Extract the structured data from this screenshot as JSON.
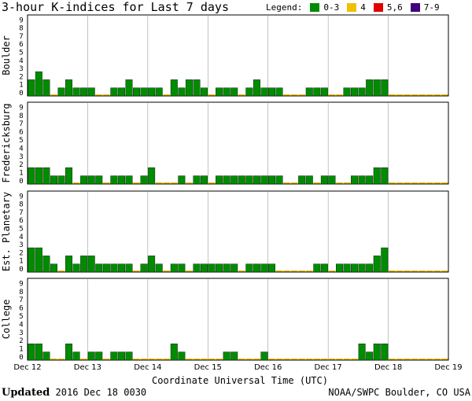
{
  "title": "3-hour K-indices for Last 7 days",
  "legend": {
    "label": "Legend:",
    "items": [
      {
        "label": "0-3",
        "color": "#008c00"
      },
      {
        "label": "4",
        "color": "#f0c000"
      },
      {
        "label": "5,6",
        "color": "#e00000"
      },
      {
        "label": "7-9",
        "color": "#400080"
      }
    ]
  },
  "footer": {
    "updated_label": "Updated",
    "updated_value": "2016 Dec 18 0030",
    "source": "NOAA/SWPC Boulder, CO USA"
  },
  "chart_data": [
    {
      "type": "bar",
      "title": "Boulder",
      "ylabel": "Boulder",
      "xlabel": "Coordinate Universal Time (UTC)",
      "ylim": [
        0,
        9
      ],
      "yticks": [
        "0",
        "1",
        "2",
        "3",
        "4",
        "5",
        "6",
        "7",
        "8",
        "9"
      ],
      "xticks": [
        "Dec 12",
        "Dec 13",
        "Dec 14",
        "Dec 15",
        "Dec 16",
        "Dec 17",
        "Dec 18",
        "Dec 19"
      ],
      "bar_interval_hours": 3,
      "values": [
        2,
        3,
        2,
        0,
        1,
        2,
        1,
        1,
        1,
        0,
        0,
        1,
        1,
        2,
        1,
        1,
        1,
        1,
        0,
        2,
        1,
        2,
        2,
        1,
        0,
        1,
        1,
        1,
        0,
        1,
        2,
        1,
        1,
        1,
        0,
        0,
        0,
        1,
        1,
        1,
        0,
        0,
        1,
        1,
        1,
        2,
        2,
        2
      ]
    },
    {
      "type": "bar",
      "title": "Fredericksburg",
      "ylabel": "Fredericksburg",
      "xlabel": "Coordinate Universal Time (UTC)",
      "ylim": [
        0,
        9
      ],
      "yticks": [
        "0",
        "1",
        "2",
        "3",
        "4",
        "5",
        "6",
        "7",
        "8",
        "9"
      ],
      "xticks": [
        "Dec 12",
        "Dec 13",
        "Dec 14",
        "Dec 15",
        "Dec 16",
        "Dec 17",
        "Dec 18",
        "Dec 19"
      ],
      "bar_interval_hours": 3,
      "values": [
        2,
        2,
        2,
        1,
        1,
        2,
        0,
        1,
        1,
        1,
        0,
        1,
        1,
        1,
        0,
        1,
        2,
        0,
        0,
        0,
        1,
        0,
        1,
        1,
        0,
        1,
        1,
        1,
        1,
        1,
        1,
        1,
        1,
        1,
        0,
        0,
        1,
        1,
        0,
        1,
        1,
        0,
        0,
        1,
        1,
        1,
        2,
        2
      ]
    },
    {
      "type": "bar",
      "title": "Est. Planetary",
      "ylabel": "Est. Planetary",
      "xlabel": "Coordinate Universal Time (UTC)",
      "ylim": [
        0,
        9
      ],
      "yticks": [
        "0",
        "1",
        "2",
        "3",
        "4",
        "5",
        "6",
        "7",
        "8",
        "9"
      ],
      "xticks": [
        "Dec 12",
        "Dec 13",
        "Dec 14",
        "Dec 15",
        "Dec 16",
        "Dec 17",
        "Dec 18",
        "Dec 19"
      ],
      "bar_interval_hours": 3,
      "values": [
        3,
        3,
        2,
        1,
        0,
        2,
        1,
        2,
        2,
        1,
        1,
        1,
        1,
        1,
        0,
        1,
        2,
        1,
        0,
        1,
        1,
        0,
        1,
        1,
        1,
        1,
        1,
        1,
        0,
        1,
        1,
        1,
        1,
        0,
        0,
        0,
        0,
        0,
        1,
        1,
        0,
        1,
        1,
        1,
        1,
        1,
        2,
        3
      ]
    },
    {
      "type": "bar",
      "title": "College",
      "ylabel": "College",
      "xlabel": "Coordinate Universal Time (UTC)",
      "ylim": [
        0,
        9
      ],
      "yticks": [
        "0",
        "1",
        "2",
        "3",
        "4",
        "5",
        "6",
        "7",
        "8",
        "9"
      ],
      "xticks": [
        "Dec 12",
        "Dec 13",
        "Dec 14",
        "Dec 15",
        "Dec 16",
        "Dec 17",
        "Dec 18",
        "Dec 19"
      ],
      "bar_interval_hours": 3,
      "values": [
        2,
        2,
        1,
        0,
        0,
        2,
        1,
        0,
        1,
        1,
        0,
        1,
        1,
        1,
        0,
        0,
        0,
        0,
        0,
        2,
        1,
        0,
        0,
        0,
        0,
        0,
        1,
        1,
        0,
        0,
        0,
        1,
        0,
        0,
        0,
        0,
        0,
        0,
        0,
        0,
        0,
        0,
        0,
        0,
        2,
        1,
        2,
        2
      ]
    }
  ]
}
